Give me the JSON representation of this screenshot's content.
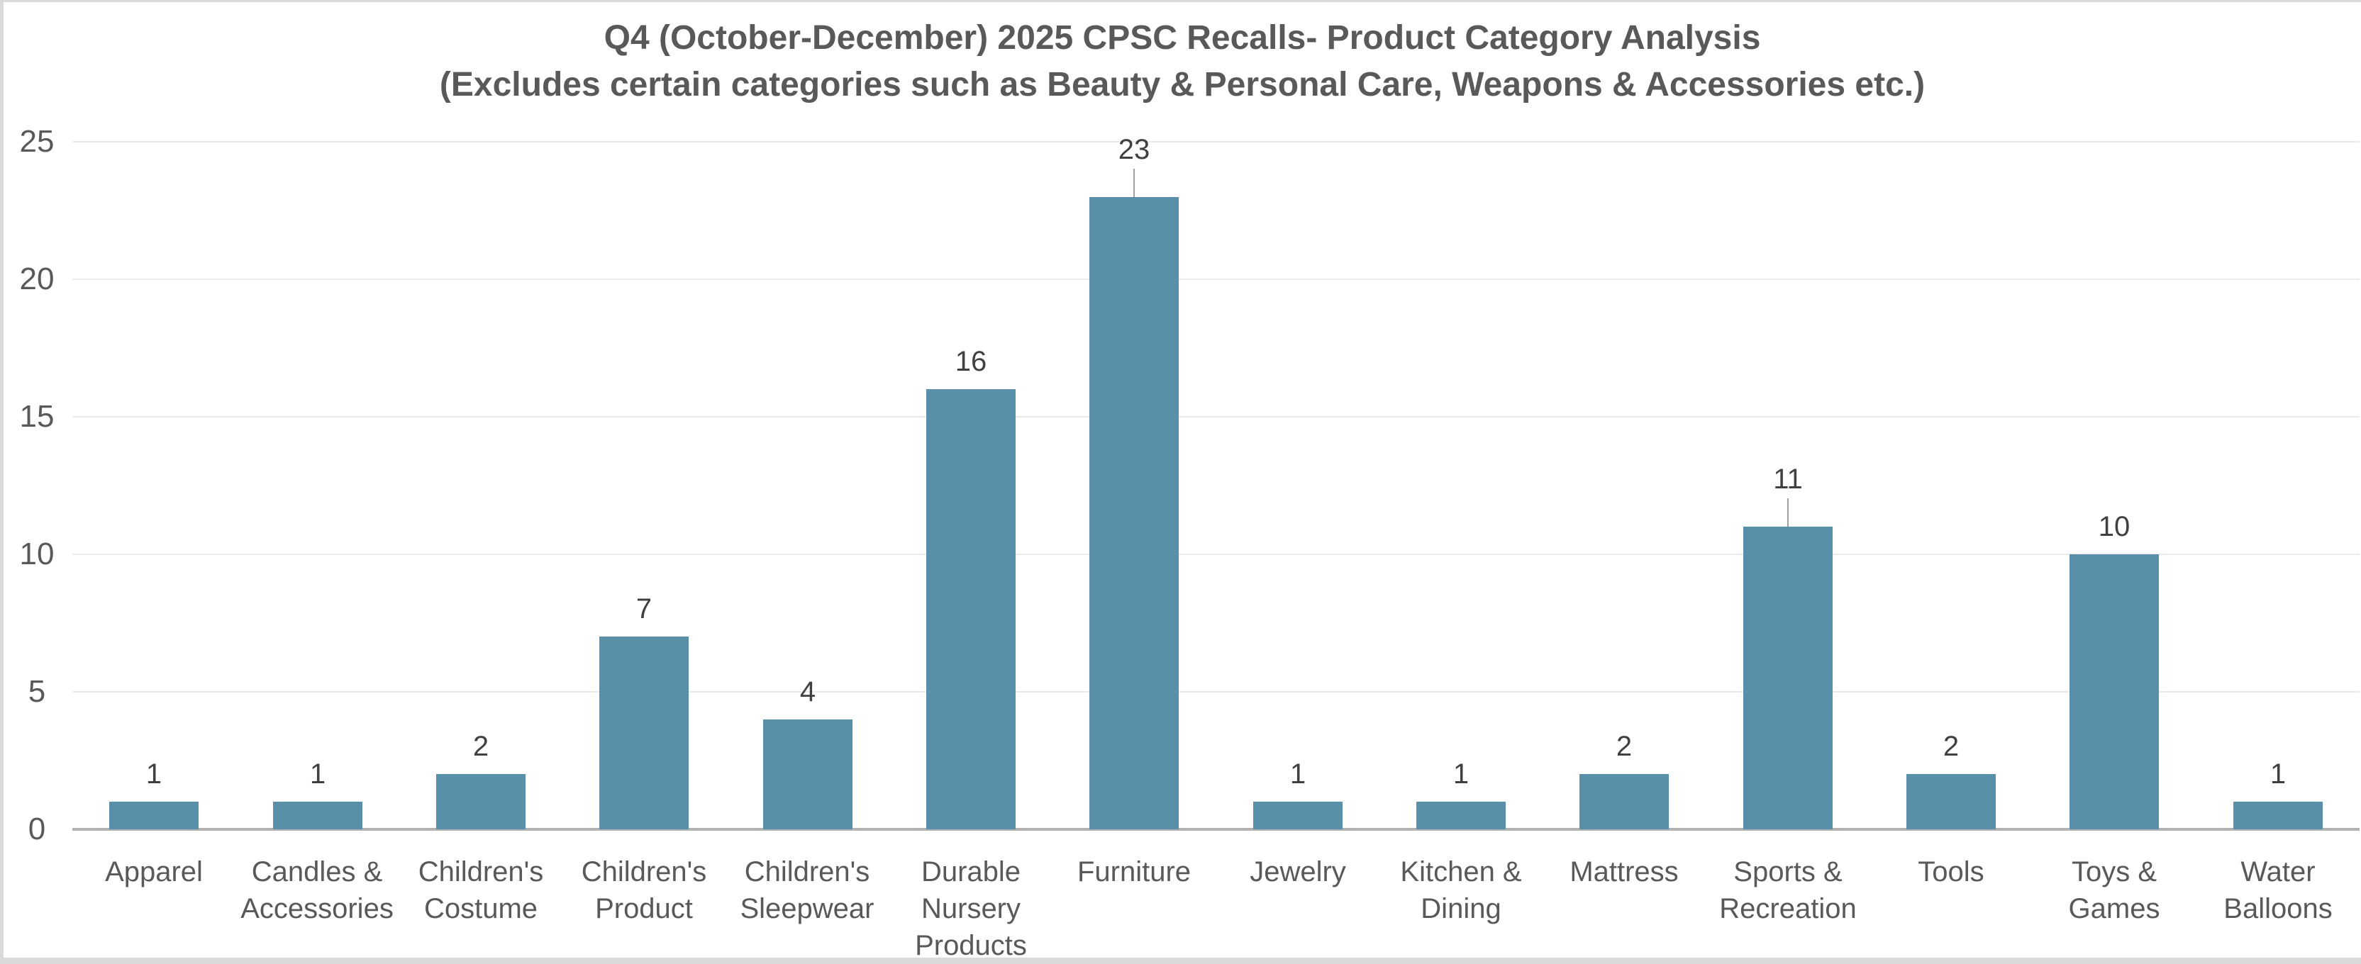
{
  "chart_data": {
    "type": "bar",
    "title": "Q4 (October-December) 2025 CPSC Recalls- Product Category Analysis",
    "subtitle": "(Excludes certain categories such as Beauty & Personal Care, Weapons & Accessories etc.)",
    "categories": [
      "Apparel",
      "Candles &\nAccessories",
      "Children's\nCostume",
      "Children's\nProduct",
      "Children's\nSleepwear",
      "Durable\nNursery\nProducts",
      "Furniture",
      "Jewelry",
      "Kitchen &\nDining",
      "Mattress",
      "Sports &\nRecreation",
      "Tools",
      "Toys &\nGames",
      "Water\nBalloons"
    ],
    "values": [
      1,
      1,
      2,
      7,
      4,
      16,
      23,
      1,
      1,
      2,
      11,
      2,
      10,
      1
    ],
    "xlabel": "",
    "ylabel": "",
    "ylim": [
      0,
      25
    ],
    "yticks": [
      0,
      5,
      10,
      15,
      20,
      25
    ],
    "grid": "horizontal",
    "legend": "none",
    "data_labels_shown": true,
    "leader_line_indices": [
      6,
      10
    ],
    "colors": {
      "bar": "#5A8FAA",
      "title_text": "#595959",
      "axis_text": "#595959",
      "data_label_text": "#404040",
      "gridline": "#EBEBEB",
      "axis_line": "#B3B3B3",
      "leader_line": "#A0A0A0",
      "background": "#FFFFFF",
      "frame": "#D9D9D9"
    }
  }
}
